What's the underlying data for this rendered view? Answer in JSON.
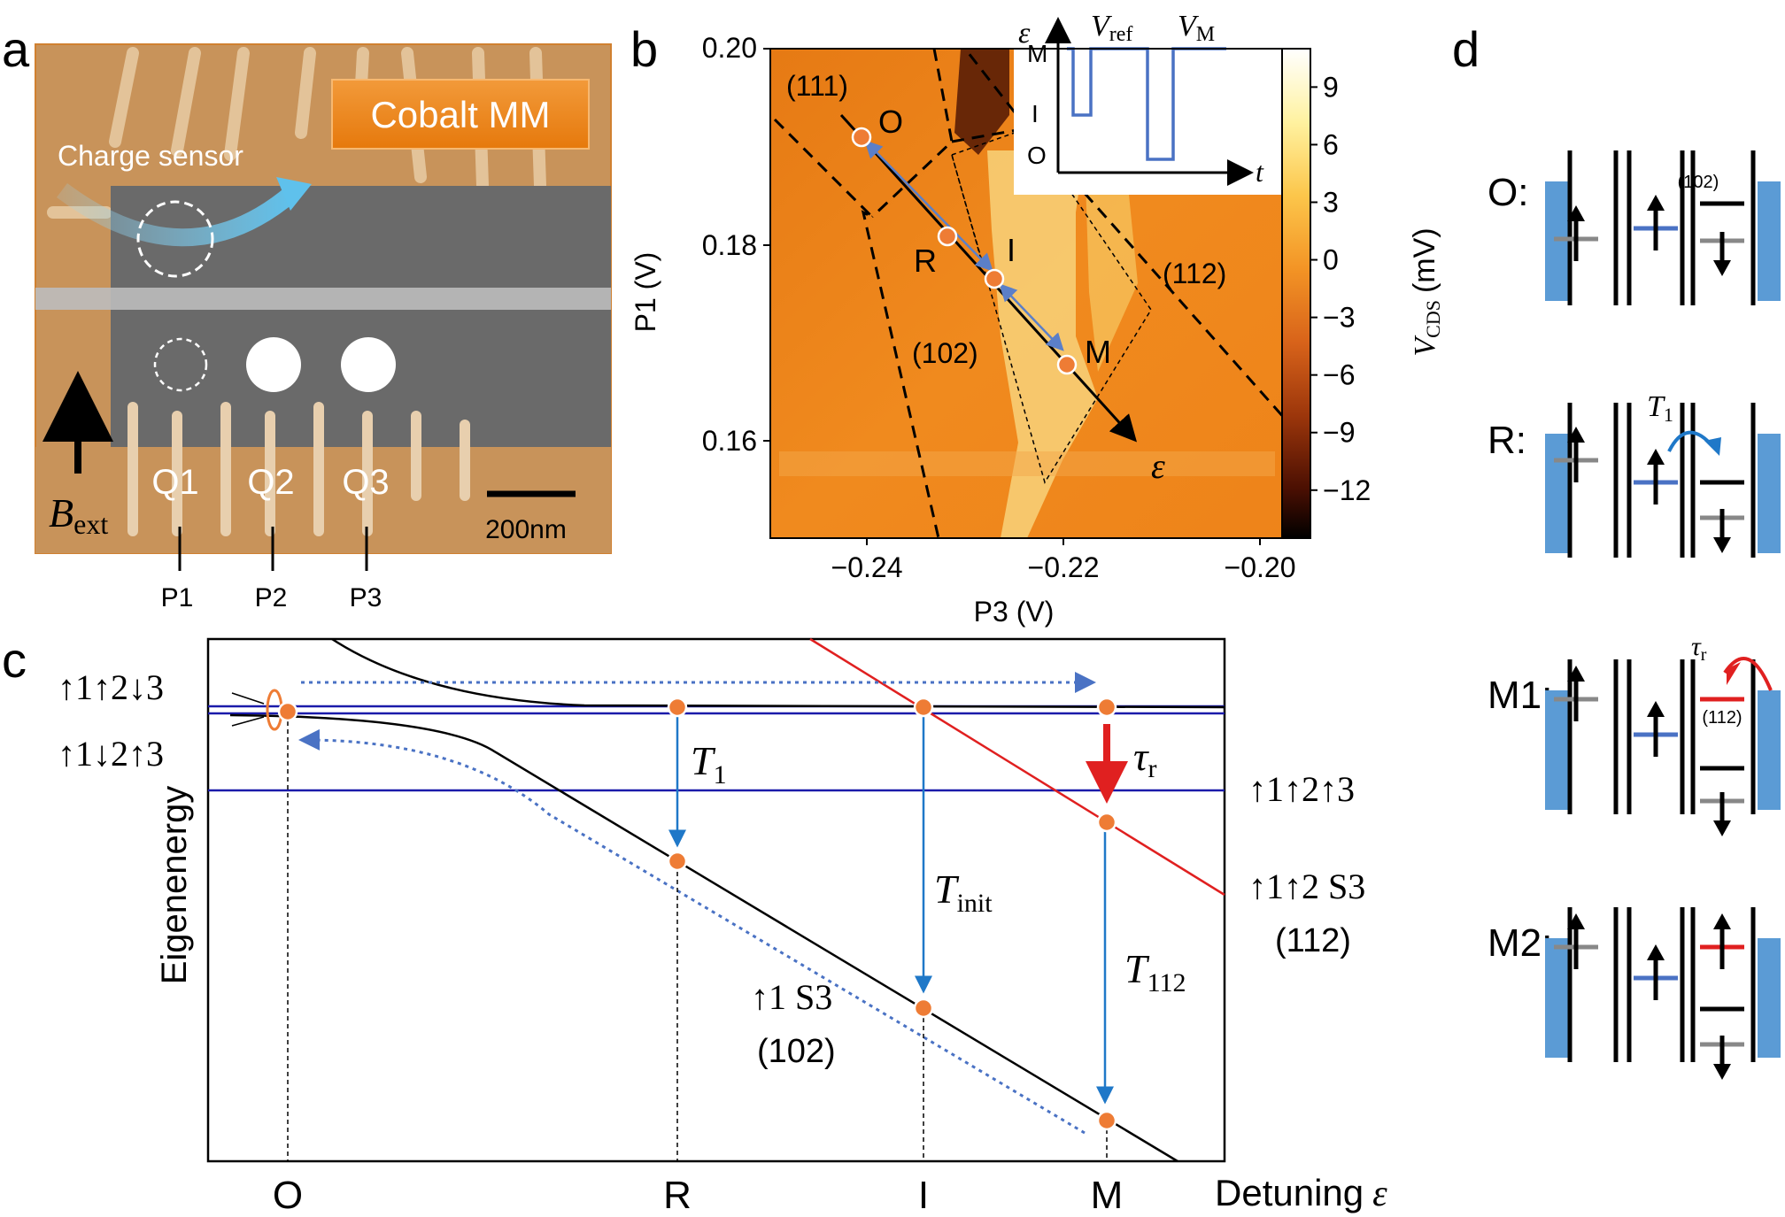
{
  "panel_labels": {
    "a": "a",
    "b": "b",
    "c": "c",
    "d": "d"
  },
  "panel_a": {
    "mm_label": "Cobalt MM",
    "sensor_label": "Charge sensor",
    "b_symbol": "B",
    "b_sub": "ext",
    "dots": [
      "Q1",
      "Q2",
      "Q3"
    ],
    "gates": [
      "P1",
      "P2",
      "P3"
    ],
    "scalebar": "200nm"
  },
  "panel_b": {
    "ylabel": "P1 (V)",
    "xlabel": "P3 (V)",
    "yticks": [
      "0.20",
      "0.18",
      "0.16"
    ],
    "xticks": [
      "−0.24",
      "−0.22",
      "−0.20"
    ],
    "regions": [
      "(111)",
      "(112)",
      "(102)"
    ],
    "points": [
      "O",
      "R",
      "I",
      "M"
    ],
    "epsilon": "ε",
    "colorbar": {
      "label_v": "V",
      "label_sub": "CDS",
      "label_unit": "(mV)",
      "ticks": [
        "9",
        "6",
        "3",
        "0",
        "−3",
        "−6",
        "−9",
        "−12"
      ]
    },
    "inset": {
      "yaxis": "ε",
      "xaxis": "t",
      "levels": [
        "M",
        "I",
        "O"
      ],
      "v_ref": "V",
      "v_ref_sub": "ref",
      "v_m": "V",
      "v_m_sub": "M"
    }
  },
  "panel_c": {
    "ylabel": "Eigenenergy",
    "xlabel": "Detuning",
    "xlabel_symbol": "ε",
    "xticks": [
      "O",
      "R",
      "I",
      "M"
    ],
    "state_labels": {
      "uud": "↑1↑2↓3",
      "udu": "↑1↓2↑3",
      "uuu": "↑1↑2↑3",
      "uus": "↑1↑2 S3",
      "us": "↑1 S3"
    },
    "charge_labels": {
      "c112": "(112)",
      "c102": "(102)"
    },
    "transitions": {
      "t1": "T",
      "t1_sub": "1",
      "tinit": "T",
      "tinit_sub": "init",
      "t112": "T",
      "t112_sub": "112",
      "taur": "τ",
      "taur_sub": "r"
    }
  },
  "panel_d": {
    "rows": [
      "O:",
      "R:",
      "M1:",
      "M2:"
    ],
    "charge_102": "(102)",
    "charge_112": "(112)",
    "t1": "T",
    "t1_sub": "1",
    "taur": "τ",
    "taur_sub": "r"
  },
  "colors": {
    "orange_marker": "#ee7c35",
    "blue_arrow": "#1f78c8",
    "red_line": "#e02020",
    "navy_line": "#1a1aaa",
    "lead_blue": "#5b9bd5"
  }
}
